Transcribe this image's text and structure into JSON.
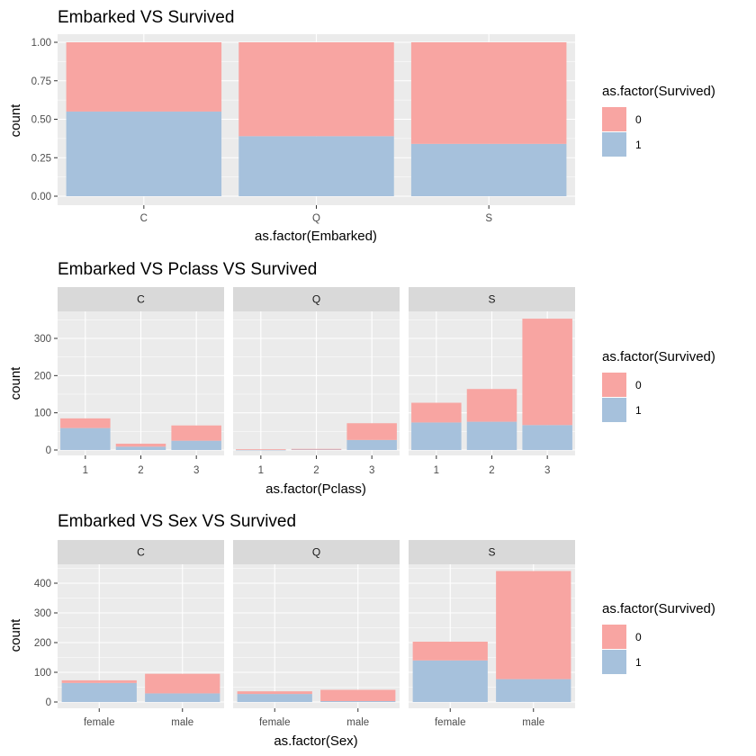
{
  "colors": {
    "survived_0": "#F8A5A2",
    "survived_1": "#A6C1DC",
    "panel_bg": "#EBEBEB",
    "strip_bg": "#D9D9D9",
    "grid": "#FFFFFF"
  },
  "legend": {
    "title": "as.factor(Survived)",
    "entries": [
      "0",
      "1"
    ]
  },
  "chart_data": [
    {
      "type": "bar",
      "stacked": true,
      "position": "fill",
      "title": "Embarked VS Survived",
      "xlabel": "as.factor(Embarked)",
      "ylabel": "count",
      "ylim": [
        0,
        1
      ],
      "yticks": [
        "0.00",
        "0.25",
        "0.50",
        "0.75",
        "1.00"
      ],
      "categories": [
        "C",
        "Q",
        "S"
      ],
      "series": [
        {
          "name": "0",
          "values": [
            0.45,
            0.61,
            0.66
          ]
        },
        {
          "name": "1",
          "values": [
            0.55,
            0.39,
            0.34
          ]
        }
      ]
    },
    {
      "type": "bar",
      "stacked": true,
      "title": "Embarked VS Pclass VS Survived",
      "xlabel": "as.factor(Pclass)",
      "ylabel": "count",
      "ylim": [
        0,
        370
      ],
      "yticks": [
        "0",
        "100",
        "200",
        "300"
      ],
      "facets": [
        "C",
        "Q",
        "S"
      ],
      "categories": [
        "1",
        "2",
        "3"
      ],
      "series": [
        {
          "name": "0",
          "values": [
            [
              26,
              8,
              41
            ],
            [
              1,
              1,
              45
            ],
            [
              53,
              88,
              286
            ]
          ]
        },
        {
          "name": "1",
          "values": [
            [
              59,
              9,
              25
            ],
            [
              1,
              2,
              27
            ],
            [
              74,
              76,
              67
            ]
          ]
        }
      ]
    },
    {
      "type": "bar",
      "stacked": true,
      "title": "Embarked VS Sex VS Survived",
      "xlabel": "as.factor(Sex)",
      "ylabel": "count",
      "ylim": [
        0,
        465
      ],
      "yticks": [
        "0",
        "100",
        "200",
        "300",
        "400"
      ],
      "facets": [
        "C",
        "Q",
        "S"
      ],
      "categories": [
        "female",
        "male"
      ],
      "series": [
        {
          "name": "0",
          "values": [
            [
              9,
              66
            ],
            [
              9,
              38
            ],
            [
              63,
              364
            ]
          ]
        },
        {
          "name": "1",
          "values": [
            [
              64,
              29
            ],
            [
              27,
              3
            ],
            [
              140,
              77
            ]
          ]
        }
      ]
    }
  ]
}
